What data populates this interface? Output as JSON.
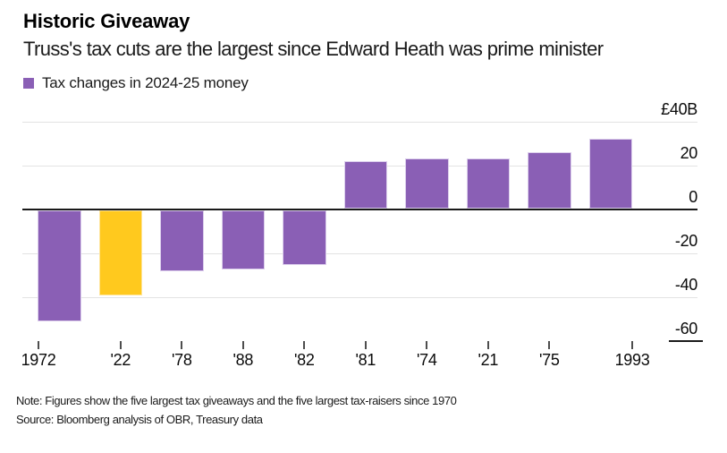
{
  "header": {
    "title": "Historic Giveaway",
    "subtitle": "Truss's tax cuts are the largest since Edward Heath was prime minister"
  },
  "legend": {
    "label": "Tax changes in 2024-25 money"
  },
  "footer": {
    "note": "Note: Figures show the five largest tax giveaways and the five largest tax-raisers since 1970",
    "source": "Source: Bloomberg analysis of OBR, Treasury data"
  },
  "chart_data": {
    "type": "bar",
    "title": "Historic Giveaway",
    "subtitle": "Truss's tax cuts are the largest since Edward Heath was prime minister",
    "legend_entries": [
      "Tax changes in 2024-25 money"
    ],
    "legend_position": "top-left",
    "categories": [
      "1972",
      "'22",
      "'78",
      "'88",
      "'82",
      "'81",
      "'74",
      "'21",
      "'75",
      "1993"
    ],
    "values": [
      -51,
      -39,
      -28,
      -27,
      -25,
      22,
      23,
      23,
      26,
      32
    ],
    "series_name": "Tax changes in 2024-25 money",
    "ylabel": "",
    "xlabel": "",
    "ylim": [
      -60,
      40
    ],
    "y_ticks": [
      {
        "label": "£40B",
        "value": 40
      },
      {
        "label": "20",
        "value": 20
      },
      {
        "label": "0",
        "value": 0
      },
      {
        "label": "-20",
        "value": -20
      },
      {
        "label": "-40",
        "value": -40
      },
      {
        "label": "-60",
        "value": -60
      }
    ],
    "grid": "horizontal-on",
    "value_axis_side": "right",
    "colors": {
      "bar": "#8a5fb5",
      "bar_edge": "#dccfec",
      "highlight": "#ffc91e",
      "highlight_edge": "#ffe59a",
      "gridline": "#e3e3e3",
      "zero_line": "#1a1a1a",
      "tick": "#4d4d4d"
    },
    "highlight_index": 1
  }
}
